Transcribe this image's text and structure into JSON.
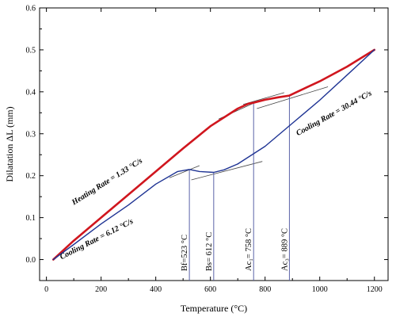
{
  "chart_data": {
    "type": "line",
    "xlabel": "Temperature (°C)",
    "ylabel": "Dilatation ΔL (mm)",
    "xlim": [
      -25,
      1250
    ],
    "ylim": [
      -0.05,
      0.6
    ],
    "xticks": [
      0,
      200,
      400,
      600,
      800,
      1000,
      1200
    ],
    "yticks": [
      0.0,
      0.1,
      0.2,
      0.3,
      0.4,
      0.5,
      0.6
    ],
    "ytick_labels": [
      "0.0",
      "0.1",
      "0.2",
      "0.3",
      "0.4",
      "0.5",
      "0.6"
    ],
    "grid": false,
    "series": [
      {
        "key": "heating",
        "color": "#d0161e",
        "x": [
          25,
          100,
          200,
          300,
          400,
          500,
          600,
          700,
          740,
          758,
          800,
          850,
          889,
          950,
          1000,
          1100,
          1200
        ],
        "y": [
          0.0,
          0.045,
          0.1,
          0.155,
          0.21,
          0.265,
          0.318,
          0.36,
          0.372,
          0.374,
          0.381,
          0.387,
          0.391,
          0.41,
          0.425,
          0.46,
          0.5
        ]
      },
      {
        "key": "cooling-612",
        "color": "#1f3494",
        "x": [
          25,
          100,
          200,
          300,
          400,
          480,
          523,
          560,
          612,
          650,
          700
        ],
        "y": [
          0.0,
          0.036,
          0.085,
          0.13,
          0.18,
          0.21,
          0.215,
          0.21,
          0.208,
          0.214,
          0.228
        ]
      },
      {
        "key": "cooling-30",
        "color": "#1f3494",
        "x": [
          700,
          800,
          900,
          1000,
          1100,
          1200
        ],
        "y": [
          0.228,
          0.27,
          0.325,
          0.38,
          0.44,
          0.5
        ]
      }
    ],
    "tangents": [
      {
        "x1": 630,
        "y1": 0.335,
        "x2": 775,
        "y2": 0.378
      },
      {
        "x1": 720,
        "y1": 0.37,
        "x2": 870,
        "y2": 0.398
      },
      {
        "x1": 770,
        "y1": 0.36,
        "x2": 1030,
        "y2": 0.412
      },
      {
        "x1": 450,
        "y1": 0.195,
        "x2": 560,
        "y2": 0.224
      },
      {
        "x1": 530,
        "y1": 0.19,
        "x2": 790,
        "y2": 0.234
      }
    ],
    "markers": [
      {
        "x": 523,
        "y": 0.215,
        "label": "Bf=523 °C"
      },
      {
        "x": 612,
        "y": 0.208,
        "label": "Bs= 612 °C"
      },
      {
        "x": 758,
        "y": 0.374,
        "label": "Ac₁= 758 °C"
      },
      {
        "x": 889,
        "y": 0.391,
        "label": "Ac₃= 889 °C"
      }
    ],
    "annotations": [
      {
        "key": "heating-rate",
        "text": "Heating Rate = 1.33 °C/s",
        "x": 100,
        "y": 0.13,
        "angle": -32
      },
      {
        "key": "cooling-rate-612",
        "text": "Cooling Rate = 6.12 °C/s",
        "x": 55,
        "y": 0.0,
        "angle": -27
      },
      {
        "key": "cooling-rate-30",
        "text": "Cooling Rate = 30.44 °C/s",
        "x": 920,
        "y": 0.295,
        "angle": -29
      }
    ]
  }
}
